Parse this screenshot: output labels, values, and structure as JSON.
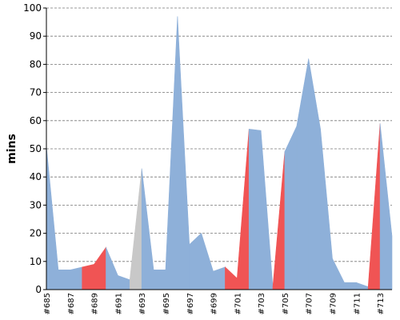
{
  "chart_data": {
    "type": "area",
    "ylabel": "mins",
    "xlabel": "",
    "ylim": [
      0,
      100
    ],
    "yticks": [
      0,
      10,
      20,
      30,
      40,
      50,
      60,
      70,
      80,
      90,
      100
    ],
    "grid": true,
    "x_tick_labels": [
      "#685",
      "#687",
      "#689",
      "#691",
      "#693",
      "#695",
      "#697",
      "#699",
      "#701",
      "#703",
      "#705",
      "#707",
      "#709",
      "#711",
      "#713"
    ],
    "x_tick_indices": [
      0,
      2,
      4,
      6,
      8,
      10,
      12,
      14,
      16,
      18,
      20,
      22,
      24,
      26,
      28
    ],
    "builds": [
      "#685",
      "#686",
      "#687",
      "#688",
      "#689",
      "#690",
      "#691",
      "#692",
      "#693",
      "#694",
      "#695",
      "#696",
      "#697",
      "#698",
      "#699",
      "#700",
      "#701",
      "#702",
      "#703",
      "#704",
      "#705",
      "#706",
      "#707",
      "#708",
      "#709",
      "#710",
      "#711",
      "#712",
      "#713",
      "#714"
    ],
    "values": [
      51,
      7,
      7,
      8,
      9,
      15,
      5,
      3.5,
      43,
      7,
      7,
      97,
      16,
      20,
      6.5,
      8,
      4,
      57,
      56.5,
      1,
      49,
      58,
      82,
      57,
      11,
      2.5,
      2.5,
      1,
      59,
      19
    ],
    "status": [
      "success",
      "success",
      "success",
      "failure",
      "failure",
      "success",
      "success",
      "aborted",
      "success",
      "success",
      "success",
      "success",
      "success",
      "success",
      "success",
      "failure",
      "failure",
      "success",
      "success",
      "failure",
      "success",
      "success",
      "success",
      "success",
      "success",
      "success",
      "success",
      "failure",
      "success",
      "success"
    ],
    "colors": {
      "success": "#8eb0d9",
      "failure": "#f05454",
      "aborted": "#c8c8c8"
    }
  }
}
